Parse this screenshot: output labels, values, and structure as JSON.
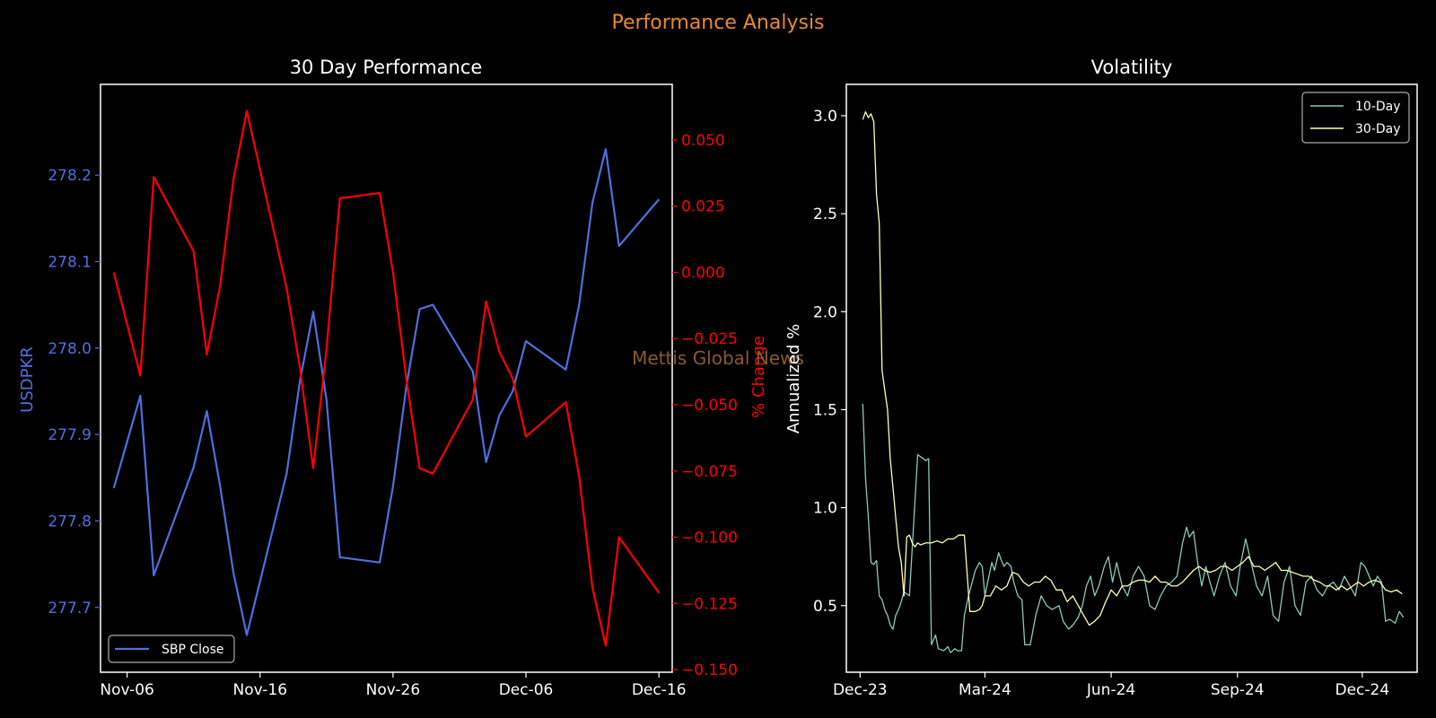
{
  "suptitle": "Performance Analysis",
  "watermark": "Mettis Global News",
  "colors": {
    "background": "#000000",
    "suptitle": "#e68a2e",
    "price_line": "#4f6fe0",
    "change_line": "#ff0000",
    "vol10": "#8dc8b8",
    "vol30": "#ffffb0",
    "watermark": "#8a5a2a",
    "axis": "#ffffff"
  },
  "chart_data": [
    {
      "type": "line",
      "title": "30 Day Performance",
      "xlabel": "",
      "ylabel": "USDPKR",
      "ylabel_right": "% Change",
      "xlim": [
        "2024-11-04",
        "2024-12-17"
      ],
      "ylim": [
        277.625,
        278.305
      ],
      "ylim_right": [
        -0.151,
        0.071
      ],
      "x_ticks": [
        "Nov-06",
        "Nov-16",
        "Nov-26",
        "Dec-06",
        "Dec-16"
      ],
      "x_tick_dates": [
        "2024-11-06",
        "2024-11-16",
        "2024-11-26",
        "2024-12-06",
        "2024-12-16"
      ],
      "y_ticks": [
        277.7,
        277.8,
        277.9,
        278.0,
        278.1,
        278.2
      ],
      "y_ticks_right": [
        -0.15,
        -0.125,
        -0.1,
        -0.075,
        -0.05,
        -0.025,
        0.0,
        0.025,
        0.05
      ],
      "legend": {
        "position": "lower-left",
        "entries": [
          "SBP Close"
        ]
      },
      "grid": false,
      "x": [
        "2024-11-05",
        "2024-11-07",
        "2024-11-08",
        "2024-11-11",
        "2024-11-12",
        "2024-11-13",
        "2024-11-14",
        "2024-11-15",
        "2024-11-18",
        "2024-11-19",
        "2024-11-20",
        "2024-11-21",
        "2024-11-22",
        "2024-11-25",
        "2024-11-26",
        "2024-11-27",
        "2024-11-28",
        "2024-11-29",
        "2024-12-02",
        "2024-12-03",
        "2024-12-04",
        "2024-12-05",
        "2024-12-06",
        "2024-12-09",
        "2024-12-10",
        "2024-12-11",
        "2024-12-12",
        "2024-12-13",
        "2024-12-16"
      ],
      "series": [
        {
          "name": "SBP Close",
          "axis": "left",
          "values": [
            277.838,
            277.945,
            277.737,
            277.862,
            277.927,
            277.84,
            277.74,
            277.668,
            277.855,
            277.962,
            278.042,
            277.94,
            277.758,
            277.752,
            277.84,
            277.955,
            278.045,
            278.05,
            277.973,
            277.868,
            277.922,
            277.95,
            278.008,
            277.975,
            278.05,
            278.168,
            278.23,
            278.118,
            278.172
          ]
        },
        {
          "name": "% Change",
          "axis": "right",
          "values": [
            0.0,
            -0.039,
            0.036,
            0.008,
            -0.031,
            -0.005,
            0.035,
            0.061,
            -0.006,
            -0.036,
            -0.074,
            -0.029,
            0.028,
            0.03,
            0.0,
            -0.04,
            -0.074,
            -0.076,
            -0.048,
            -0.011,
            -0.03,
            -0.04,
            -0.062,
            -0.049,
            -0.077,
            -0.119,
            -0.141,
            -0.1,
            -0.121
          ]
        }
      ]
    },
    {
      "type": "line",
      "title": "Volatility",
      "xlabel": "",
      "ylabel": "Annualized %",
      "xlim": [
        "2023-11-21",
        "2025-01-10"
      ],
      "ylim": [
        0.16,
        3.16
      ],
      "x_ticks": [
        "Dec-23",
        "Mar-24",
        "Jun-24",
        "Sep-24",
        "Dec-24"
      ],
      "x_tick_dates": [
        "2023-12-01",
        "2024-03-01",
        "2024-06-01",
        "2024-09-01",
        "2024-12-01"
      ],
      "y_ticks": [
        0.5,
        1.0,
        1.5,
        2.0,
        2.5,
        3.0
      ],
      "legend": {
        "position": "upper-right",
        "entries": [
          "10-Day",
          "30-Day"
        ]
      },
      "grid": false,
      "series": [
        {
          "name": "10-Day",
          "x": [
            "2023-12-03",
            "2023-12-05",
            "2023-12-07",
            "2023-12-09",
            "2023-12-11",
            "2023-12-13",
            "2023-12-15",
            "2023-12-17",
            "2023-12-19",
            "2023-12-21",
            "2023-12-23",
            "2023-12-25",
            "2023-12-27",
            "2023-12-29",
            "2023-12-31",
            "2024-01-02",
            "2024-01-06",
            "2024-01-12",
            "2024-01-14",
            "2024-01-18",
            "2024-01-20",
            "2024-01-22",
            "2024-01-25",
            "2024-01-27",
            "2024-01-31",
            "2024-02-03",
            "2024-02-05",
            "2024-02-08",
            "2024-02-10",
            "2024-02-13",
            "2024-02-15",
            "2024-02-18",
            "2024-02-20",
            "2024-02-23",
            "2024-02-26",
            "2024-02-28",
            "2024-03-01",
            "2024-03-03",
            "2024-03-06",
            "2024-03-08",
            "2024-03-11",
            "2024-03-13",
            "2024-03-15",
            "2024-03-17",
            "2024-03-20",
            "2024-03-22",
            "2024-03-25",
            "2024-03-28",
            "2024-03-30",
            "2024-04-03",
            "2024-04-07",
            "2024-04-11",
            "2024-04-15",
            "2024-04-19",
            "2024-04-24",
            "2024-04-27",
            "2024-05-01",
            "2024-05-04",
            "2024-05-08",
            "2024-05-11",
            "2024-05-14",
            "2024-05-17",
            "2024-05-20",
            "2024-05-23",
            "2024-05-27",
            "2024-05-30",
            "2024-06-02",
            "2024-06-05",
            "2024-06-09",
            "2024-06-13",
            "2024-06-17",
            "2024-06-21",
            "2024-06-25",
            "2024-06-29",
            "2024-07-03",
            "2024-07-07",
            "2024-07-11",
            "2024-07-15",
            "2024-07-19",
            "2024-07-23",
            "2024-07-26",
            "2024-07-28",
            "2024-07-31",
            "2024-08-03",
            "2024-08-06",
            "2024-08-09",
            "2024-08-12",
            "2024-08-15",
            "2024-08-19",
            "2024-08-23",
            "2024-08-27",
            "2024-08-31",
            "2024-09-03",
            "2024-09-07",
            "2024-09-11",
            "2024-09-15",
            "2024-09-19",
            "2024-09-23",
            "2024-09-27",
            "2024-10-01",
            "2024-10-05",
            "2024-10-09",
            "2024-10-13",
            "2024-10-17",
            "2024-10-21",
            "2024-10-25",
            "2024-10-29",
            "2024-11-02",
            "2024-11-06",
            "2024-11-10",
            "2024-11-14",
            "2024-11-18",
            "2024-11-22",
            "2024-11-26",
            "2024-11-30",
            "2024-12-03",
            "2024-12-06",
            "2024-12-09",
            "2024-12-12",
            "2024-12-15",
            "2024-12-18",
            "2024-12-21",
            "2024-12-25",
            "2024-12-28",
            "2024-12-31"
          ],
          "values": [
            1.53,
            1.15,
            0.95,
            0.72,
            0.71,
            0.73,
            0.55,
            0.53,
            0.48,
            0.45,
            0.4,
            0.38,
            0.45,
            0.48,
            0.52,
            0.57,
            0.55,
            1.27,
            1.26,
            1.24,
            1.25,
            0.3,
            0.35,
            0.28,
            0.27,
            0.29,
            0.26,
            0.28,
            0.27,
            0.27,
            0.45,
            0.55,
            0.6,
            0.68,
            0.72,
            0.7,
            0.55,
            0.62,
            0.72,
            0.68,
            0.77,
            0.73,
            0.7,
            0.72,
            0.7,
            0.62,
            0.55,
            0.53,
            0.3,
            0.3,
            0.45,
            0.55,
            0.5,
            0.48,
            0.5,
            0.42,
            0.38,
            0.4,
            0.44,
            0.5,
            0.6,
            0.65,
            0.55,
            0.6,
            0.7,
            0.75,
            0.62,
            0.72,
            0.6,
            0.55,
            0.65,
            0.7,
            0.65,
            0.5,
            0.48,
            0.55,
            0.6,
            0.62,
            0.65,
            0.82,
            0.9,
            0.85,
            0.88,
            0.72,
            0.6,
            0.7,
            0.62,
            0.55,
            0.65,
            0.72,
            0.6,
            0.55,
            0.7,
            0.84,
            0.72,
            0.6,
            0.55,
            0.65,
            0.45,
            0.42,
            0.62,
            0.7,
            0.5,
            0.45,
            0.62,
            0.65,
            0.58,
            0.55,
            0.6,
            0.62,
            0.58,
            0.65,
            0.6,
            0.55,
            0.72,
            0.7,
            0.65,
            0.6,
            0.65,
            0.62,
            0.42,
            0.43,
            0.41,
            0.47,
            0.44
          ]
        },
        {
          "name": "30-Day",
          "x": [
            "2023-12-03",
            "2023-12-05",
            "2023-12-07",
            "2023-12-09",
            "2023-12-11",
            "2023-12-13",
            "2023-12-15",
            "2023-12-17",
            "2023-12-19",
            "2023-12-21",
            "2023-12-23",
            "2023-12-25",
            "2023-12-27",
            "2023-12-29",
            "2023-12-31",
            "2024-01-02",
            "2024-01-04",
            "2024-01-06",
            "2024-01-08",
            "2024-01-10",
            "2024-01-12",
            "2024-01-14",
            "2024-01-18",
            "2024-01-22",
            "2024-01-26",
            "2024-01-30",
            "2024-02-03",
            "2024-02-07",
            "2024-02-11",
            "2024-02-15",
            "2024-02-19",
            "2024-02-23",
            "2024-02-26",
            "2024-02-28",
            "2024-03-01",
            "2024-03-05",
            "2024-03-09",
            "2024-03-13",
            "2024-03-17",
            "2024-03-21",
            "2024-03-25",
            "2024-03-29",
            "2024-04-02",
            "2024-04-06",
            "2024-04-10",
            "2024-04-14",
            "2024-04-18",
            "2024-04-22",
            "2024-04-26",
            "2024-04-30",
            "2024-05-04",
            "2024-05-08",
            "2024-05-12",
            "2024-05-16",
            "2024-05-20",
            "2024-05-24",
            "2024-05-28",
            "2024-06-01",
            "2024-06-05",
            "2024-06-09",
            "2024-06-13",
            "2024-06-17",
            "2024-06-21",
            "2024-06-25",
            "2024-06-29",
            "2024-07-03",
            "2024-07-07",
            "2024-07-11",
            "2024-07-15",
            "2024-07-19",
            "2024-07-23",
            "2024-07-27",
            "2024-07-31",
            "2024-08-04",
            "2024-08-08",
            "2024-08-12",
            "2024-08-16",
            "2024-08-20",
            "2024-08-24",
            "2024-08-28",
            "2024-09-01",
            "2024-09-05",
            "2024-09-09",
            "2024-09-13",
            "2024-09-17",
            "2024-09-21",
            "2024-09-25",
            "2024-09-29",
            "2024-10-03",
            "2024-10-07",
            "2024-10-11",
            "2024-10-15",
            "2024-10-19",
            "2024-10-23",
            "2024-10-27",
            "2024-10-31",
            "2024-11-04",
            "2024-11-08",
            "2024-11-12",
            "2024-11-16",
            "2024-11-20",
            "2024-11-24",
            "2024-11-28",
            "2024-12-02",
            "2024-12-06",
            "2024-12-10",
            "2024-12-14",
            "2024-12-18",
            "2024-12-22",
            "2024-12-26",
            "2024-12-30"
          ],
          "values": [
            2.98,
            3.02,
            2.99,
            3.01,
            2.97,
            2.6,
            2.45,
            1.7,
            1.6,
            1.5,
            1.25,
            1.1,
            0.95,
            0.8,
            0.72,
            0.55,
            0.85,
            0.86,
            0.82,
            0.8,
            0.82,
            0.81,
            0.82,
            0.82,
            0.83,
            0.82,
            0.84,
            0.84,
            0.86,
            0.86,
            0.47,
            0.47,
            0.48,
            0.5,
            0.55,
            0.55,
            0.6,
            0.58,
            0.6,
            0.67,
            0.66,
            0.62,
            0.6,
            0.62,
            0.62,
            0.65,
            0.63,
            0.58,
            0.58,
            0.52,
            0.55,
            0.5,
            0.45,
            0.4,
            0.42,
            0.45,
            0.52,
            0.58,
            0.55,
            0.6,
            0.6,
            0.62,
            0.63,
            0.63,
            0.62,
            0.65,
            0.62,
            0.62,
            0.6,
            0.6,
            0.62,
            0.65,
            0.68,
            0.7,
            0.68,
            0.67,
            0.68,
            0.7,
            0.7,
            0.68,
            0.7,
            0.72,
            0.75,
            0.7,
            0.7,
            0.68,
            0.7,
            0.72,
            0.68,
            0.68,
            0.67,
            0.66,
            0.65,
            0.65,
            0.63,
            0.62,
            0.6,
            0.6,
            0.58,
            0.6,
            0.58,
            0.6,
            0.62,
            0.6,
            0.62,
            0.63,
            0.62,
            0.58,
            0.57,
            0.58,
            0.56
          ]
        }
      ]
    }
  ]
}
